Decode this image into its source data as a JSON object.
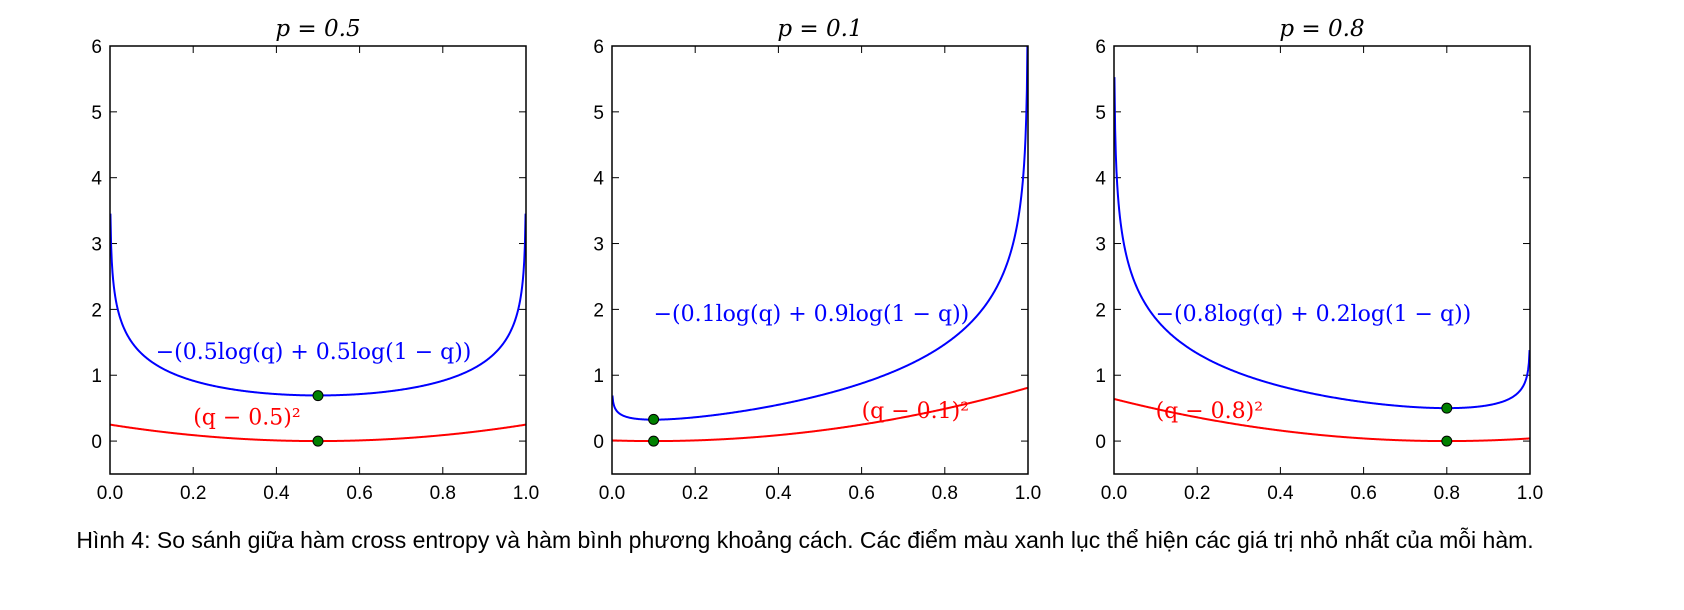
{
  "chart_data": [
    {
      "type": "line",
      "title": "p = 0.5",
      "xlim": [
        0.0,
        1.0
      ],
      "ylim": [
        -0.5,
        6
      ],
      "x_ticks": [
        "0.0",
        "0.2",
        "0.4",
        "0.6",
        "0.8",
        "1.0"
      ],
      "y_ticks": [
        "0",
        "1",
        "2",
        "3",
        "4",
        "5",
        "6"
      ],
      "p": 0.5,
      "series": [
        {
          "name": "−(0.5log(q) + 0.5log(1 − q))",
          "color": "#0000ff",
          "function": "cross_entropy"
        },
        {
          "name": "(q − 0.5)²",
          "color": "#ff0000",
          "function": "squared_distance"
        }
      ],
      "minima": [
        {
          "x": 0.5,
          "y": 0.69,
          "color": "#008000"
        },
        {
          "x": 0.5,
          "y": 0.0,
          "color": "#008000"
        }
      ]
    },
    {
      "type": "line",
      "title": "p = 0.1",
      "xlim": [
        0.0,
        1.0
      ],
      "ylim": [
        -0.5,
        6
      ],
      "x_ticks": [
        "0.0",
        "0.2",
        "0.4",
        "0.6",
        "0.8",
        "1.0"
      ],
      "y_ticks": [
        "0",
        "1",
        "2",
        "3",
        "4",
        "5",
        "6"
      ],
      "p": 0.1,
      "series": [
        {
          "name": "−(0.1log(q) + 0.9log(1 − q))",
          "color": "#0000ff",
          "function": "cross_entropy"
        },
        {
          "name": "(q − 0.1)²",
          "color": "#ff0000",
          "function": "squared_distance"
        }
      ],
      "minima": [
        {
          "x": 0.1,
          "y": 0.33,
          "color": "#008000"
        },
        {
          "x": 0.1,
          "y": 0.0,
          "color": "#008000"
        }
      ]
    },
    {
      "type": "line",
      "title": "p = 0.8",
      "xlim": [
        0.0,
        1.0
      ],
      "ylim": [
        -0.5,
        6
      ],
      "x_ticks": [
        "0.0",
        "0.2",
        "0.4",
        "0.6",
        "0.8",
        "1.0"
      ],
      "y_ticks": [
        "0",
        "1",
        "2",
        "3",
        "4",
        "5",
        "6"
      ],
      "p": 0.8,
      "series": [
        {
          "name": "−(0.8log(q) + 0.2log(1 − q))",
          "color": "#0000ff",
          "function": "cross_entropy"
        },
        {
          "name": "(q − 0.8)²",
          "color": "#ff0000",
          "function": "squared_distance"
        }
      ],
      "minima": [
        {
          "x": 0.8,
          "y": 0.5,
          "color": "#008000"
        },
        {
          "x": 0.8,
          "y": 0.0,
          "color": "#008000"
        }
      ]
    }
  ],
  "caption": "Hình 4: So sánh giữa hàm cross entropy và hàm bình phương khoảng cách. Các điểm màu xanh lục thể hiện các giá trị nhỏ nhất của mỗi hàm."
}
